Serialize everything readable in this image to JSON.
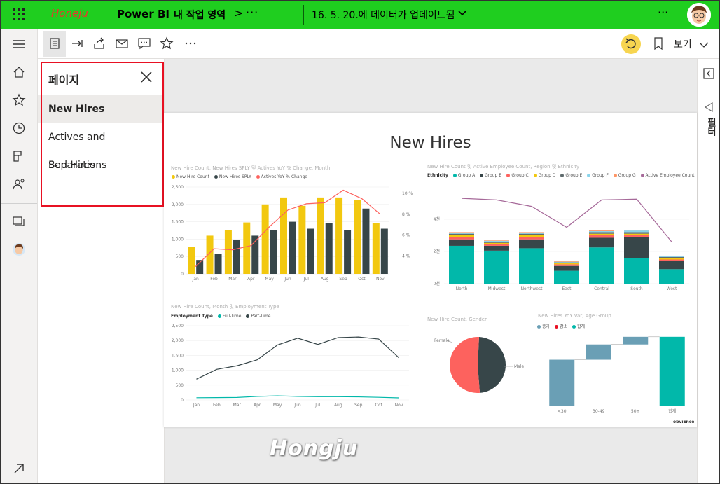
{
  "header": {
    "watermark_brand": "Honeju",
    "app_name": "Power BI",
    "workspace": "내 작업 영역",
    "breadcrumb_chevron": ">",
    "more": "···",
    "updated": "16. 5. 20.에 데이터가 업데이트됨",
    "more_right": "···"
  },
  "toolbar": {
    "view_label": "보기"
  },
  "pages_pane": {
    "title": "페이지",
    "items": [
      {
        "label": "New Hires",
        "selected": true
      },
      {
        "label": "Actives and Separations",
        "selected": false
      },
      {
        "label": "Bad Hires",
        "selected": false
      }
    ]
  },
  "filters": {
    "label": "필터"
  },
  "report": {
    "title": "New Hires",
    "footer_logo": "obviEnce"
  },
  "colors": {
    "topbar": "#1fce1f",
    "yellow": "#f2c80f",
    "dark": "#374649",
    "red": "#fd625e",
    "teal": "#01b8aa",
    "purple": "#a66999",
    "highlight": "#e81123"
  },
  "watermark": "Hongju",
  "chart_data": [
    {
      "type": "bar",
      "title": "New Hire Count, New Hires SPLY 및 Actives YoY % Change, Month",
      "categories": [
        "Jan",
        "Feb",
        "Mar",
        "Apr",
        "May",
        "Jun",
        "Jul",
        "Aug",
        "Sep",
        "Oct",
        "Nov"
      ],
      "series": [
        {
          "name": "New Hire Count",
          "values": [
            780,
            1100,
            1250,
            1480,
            2000,
            2200,
            1960,
            2200,
            2200,
            2120,
            1460
          ]
        },
        {
          "name": "New Hires SPLY",
          "values": [
            400,
            580,
            980,
            1100,
            1250,
            1500,
            1300,
            1460,
            1270,
            1880,
            1300
          ]
        },
        {
          "name": "Actives YoY % Change",
          "axis": "right",
          "values": [
            3.0,
            4.7,
            4.6,
            5.0,
            6.8,
            8.4,
            9.0,
            9.1,
            10.3,
            9.5,
            8.0
          ]
        }
      ],
      "y_ticks": [
        "0",
        "500",
        "1,000",
        "1,500",
        "2,000",
        "2,500"
      ],
      "y2_ticks": [
        "4 %",
        "6 %",
        "8 %",
        "10 %"
      ],
      "ylim": [
        0,
        2500
      ],
      "y2lim": [
        2.3,
        10.6
      ]
    },
    {
      "type": "bar",
      "title": "New Hire Count 및 Active Employee Count, Region 및 Ethnicity",
      "legend_title": "Ethnicity",
      "categories": [
        "North",
        "Midwest",
        "Northwest",
        "East",
        "Central",
        "South",
        "West"
      ],
      "series": [
        {
          "name": "Group A",
          "values": [
            2350,
            2050,
            2200,
            800,
            2250,
            1600,
            900
          ]
        },
        {
          "name": "Group B",
          "values": [
            400,
            300,
            550,
            300,
            600,
            1300,
            500
          ]
        },
        {
          "name": "Group C",
          "values": [
            150,
            100,
            150,
            100,
            150,
            100,
            100
          ]
        },
        {
          "name": "Group D",
          "values": [
            100,
            80,
            100,
            60,
            100,
            100,
            80
          ]
        },
        {
          "name": "Group E",
          "values": [
            100,
            80,
            100,
            60,
            100,
            100,
            80
          ]
        },
        {
          "name": "Group F",
          "values": [
            60,
            50,
            60,
            40,
            60,
            100,
            50
          ]
        },
        {
          "name": "Group G",
          "values": [
            40,
            30,
            40,
            30,
            40,
            40,
            30
          ]
        },
        {
          "name": "Active Employee Count",
          "type": "line",
          "values": [
            5300,
            5200,
            4800,
            3500,
            5200,
            5250,
            2600
          ]
        }
      ],
      "y_ticks": [
        "0천",
        "2천",
        "4천"
      ],
      "ylim": [
        0,
        6000
      ]
    },
    {
      "type": "line",
      "title": "New Hire Count, Month 및 Employment Type",
      "legend_title": "Employment Type",
      "categories": [
        "Jan",
        "Feb",
        "Mar",
        "Apr",
        "May",
        "Jun",
        "Jul",
        "Aug",
        "Sep",
        "Oct",
        "Nov"
      ],
      "series": [
        {
          "name": "Full-Time",
          "values": [
            75,
            80,
            85,
            120,
            140,
            120,
            110,
            110,
            105,
            90,
            70
          ]
        },
        {
          "name": "Part-Time",
          "values": [
            700,
            1030,
            1150,
            1350,
            1850,
            2080,
            1870,
            2100,
            2120,
            2050,
            1420
          ]
        }
      ],
      "y_ticks": [
        "0",
        "500",
        "1,000",
        "1,500",
        "2,000",
        "2,500"
      ],
      "ylim": [
        0,
        2500
      ]
    },
    {
      "type": "pie",
      "title": "New Hire Count, Gender",
      "labels": [
        "Female",
        "Male"
      ],
      "values": [
        48,
        52
      ]
    },
    {
      "type": "bar",
      "title": "New Hires YoY Var, Age Group",
      "subtype": "waterfall",
      "legend": [
        "증가",
        "감소",
        "합계"
      ],
      "categories": [
        "<30",
        "30-49",
        "50+",
        "합계"
      ],
      "values": [
        1800,
        600,
        300,
        2700
      ]
    }
  ]
}
